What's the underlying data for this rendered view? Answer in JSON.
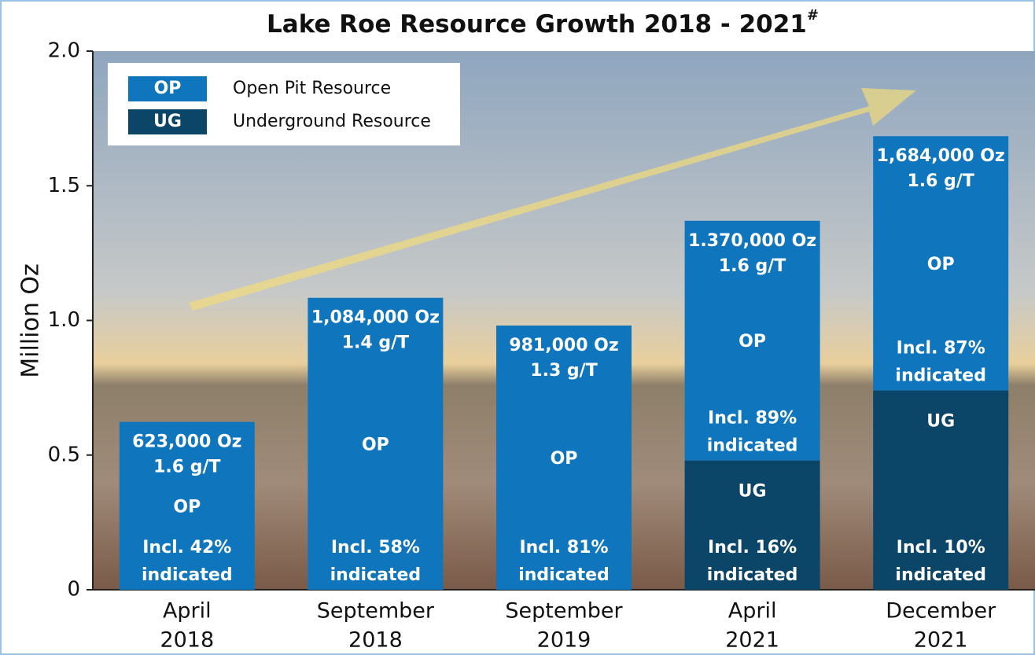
{
  "chart_data": {
    "type": "stacked_bar",
    "title": "Lake Roe Resource Growth 2018 - 2021",
    "title_note": "#",
    "ylabel": "Million Oz",
    "categories": [
      [
        "April",
        "2018"
      ],
      [
        "September",
        "2018"
      ],
      [
        "September",
        "2019"
      ],
      [
        "April",
        "2021"
      ],
      [
        "December",
        "2021"
      ]
    ],
    "series": [
      {
        "name": "Open Pit Resource",
        "short": "OP",
        "color": "#0f75bd",
        "values": [
          0.623,
          1.084,
          0.981,
          0.89,
          0.944
        ],
        "notes": [
          [
            "Incl. 42%",
            "indicated"
          ],
          [
            "Incl. 58%",
            "indicated"
          ],
          [
            "Incl. 81%",
            "indicated"
          ],
          [
            "Incl. 89%",
            "indicated"
          ],
          [
            "Incl. 87%",
            "indicated"
          ]
        ]
      },
      {
        "name": "Underground Resource",
        "short": "UG",
        "color": "#0b4567",
        "values": [
          null,
          null,
          null,
          0.48,
          0.74
        ],
        "notes": [
          null,
          null,
          null,
          [
            "Incl. 16%",
            "indicated"
          ],
          [
            "Incl. 10%",
            "indicated"
          ]
        ]
      }
    ],
    "total_labels": [
      [
        "623,000 Oz",
        "1.6 g/T"
      ],
      [
        "1,084,000 Oz",
        "1.4 g/T"
      ],
      [
        "981,000 Oz",
        "1.3 g/T"
      ],
      [
        "1.370,000 Oz",
        "1.6 g/T"
      ],
      [
        "1,684,000 Oz",
        "1.6 g/T"
      ]
    ],
    "ylim": [
      0,
      2
    ],
    "yticks": [
      0,
      0.5,
      {
        "value": 1,
        "label": "1.0"
      },
      1.5,
      {
        "value": 2,
        "label": "2.0"
      }
    ],
    "legend": "top-left"
  }
}
